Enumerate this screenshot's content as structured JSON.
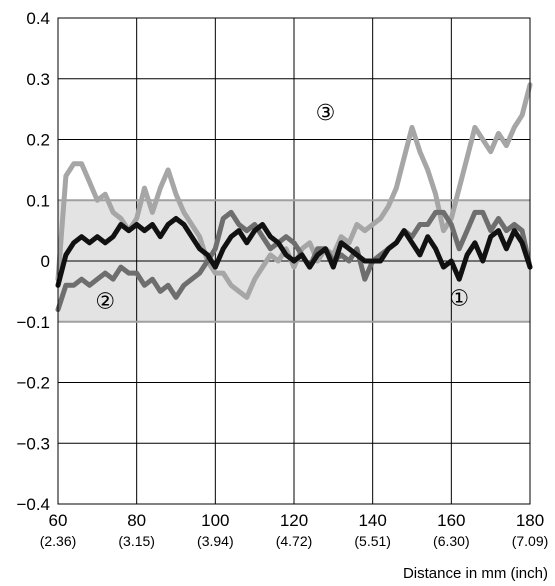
{
  "chart_data": {
    "type": "line",
    "xlabel": "Distance in mm (inch)",
    "ylabel": "",
    "xlim": [
      60,
      180
    ],
    "ylim": [
      -0.4,
      0.4
    ],
    "grid": true,
    "x_ticks": [
      {
        "mm": "60",
        "inch": "(2.36)"
      },
      {
        "mm": "80",
        "inch": "(3.15)"
      },
      {
        "mm": "100",
        "inch": "(3.94)"
      },
      {
        "mm": "120",
        "inch": "(4.72)"
      },
      {
        "mm": "140",
        "inch": "(5.51)"
      },
      {
        "mm": "160",
        "inch": "(6.30)"
      },
      {
        "mm": "180",
        "inch": "(7.09)"
      }
    ],
    "y_ticks": [
      "0.4",
      "0.3",
      "0.2",
      "0.1",
      "0",
      "−0.1",
      "−0.2",
      "−0.3",
      "−0.4"
    ],
    "tolerance_band": [
      -0.1,
      0.1
    ],
    "series": [
      {
        "marker": "①",
        "color": "#111111",
        "x": [
          60,
          62,
          64,
          66,
          68,
          70,
          72,
          74,
          76,
          78,
          80,
          82,
          84,
          86,
          88,
          90,
          92,
          94,
          96,
          98,
          100,
          102,
          104,
          106,
          108,
          110,
          112,
          114,
          116,
          118,
          120,
          122,
          124,
          126,
          128,
          130,
          132,
          134,
          136,
          138,
          140,
          142,
          144,
          146,
          148,
          150,
          152,
          154,
          156,
          158,
          160,
          162,
          164,
          166,
          168,
          170,
          172,
          174,
          176,
          178,
          180
        ],
        "y": [
          -0.04,
          0.01,
          0.03,
          0.04,
          0.03,
          0.04,
          0.03,
          0.04,
          0.06,
          0.05,
          0.06,
          0.05,
          0.06,
          0.04,
          0.06,
          0.07,
          0.06,
          0.04,
          0.02,
          0.01,
          -0.01,
          0.02,
          0.04,
          0.05,
          0.03,
          0.05,
          0.06,
          0.04,
          0.03,
          0.01,
          0.0,
          0.01,
          -0.01,
          0.01,
          0.02,
          -0.01,
          0.03,
          0.02,
          0.01,
          0.0,
          0.0,
          0.0,
          0.02,
          0.03,
          0.05,
          0.03,
          0.01,
          0.04,
          0.02,
          -0.01,
          0.0,
          -0.03,
          0.01,
          0.03,
          0.0,
          0.04,
          0.05,
          0.02,
          0.05,
          0.03,
          -0.01
        ]
      },
      {
        "marker": "②",
        "color": "#6e6e6e",
        "x": [
          60,
          62,
          64,
          66,
          68,
          70,
          72,
          74,
          76,
          78,
          80,
          82,
          84,
          86,
          88,
          90,
          92,
          94,
          96,
          98,
          100,
          102,
          104,
          106,
          108,
          110,
          112,
          114,
          116,
          118,
          120,
          122,
          124,
          126,
          128,
          130,
          132,
          134,
          136,
          138,
          140,
          142,
          144,
          146,
          148,
          150,
          152,
          154,
          156,
          158,
          160,
          162,
          164,
          166,
          168,
          170,
          172,
          174,
          176,
          178,
          180
        ],
        "y": [
          -0.08,
          -0.04,
          -0.04,
          -0.03,
          -0.04,
          -0.03,
          -0.02,
          -0.03,
          -0.01,
          -0.02,
          -0.02,
          -0.04,
          -0.03,
          -0.05,
          -0.04,
          -0.06,
          -0.04,
          -0.03,
          -0.02,
          0.0,
          0.02,
          0.07,
          0.08,
          0.06,
          0.05,
          0.06,
          0.04,
          0.02,
          0.03,
          0.04,
          0.03,
          0.01,
          -0.01,
          0.02,
          0.02,
          0.0,
          0.01,
          0.0,
          0.02,
          -0.03,
          0.0,
          0.01,
          0.02,
          0.03,
          0.05,
          0.04,
          0.06,
          0.06,
          0.08,
          0.08,
          0.06,
          0.02,
          0.05,
          0.08,
          0.08,
          0.05,
          0.07,
          0.05,
          0.06,
          0.05,
          -0.01
        ]
      },
      {
        "marker": "③",
        "color": "#a6a6a6",
        "x": [
          60,
          62,
          64,
          66,
          68,
          70,
          72,
          74,
          76,
          78,
          80,
          82,
          84,
          86,
          88,
          90,
          92,
          94,
          96,
          98,
          100,
          102,
          104,
          106,
          108,
          110,
          112,
          114,
          116,
          118,
          120,
          122,
          124,
          126,
          128,
          130,
          132,
          134,
          136,
          138,
          140,
          142,
          144,
          146,
          148,
          150,
          152,
          154,
          156,
          158,
          160,
          162,
          164,
          166,
          168,
          170,
          172,
          174,
          176,
          178,
          180
        ],
        "y": [
          -0.03,
          0.14,
          0.16,
          0.16,
          0.13,
          0.1,
          0.11,
          0.08,
          0.07,
          0.05,
          0.07,
          0.12,
          0.08,
          0.12,
          0.15,
          0.11,
          0.08,
          0.06,
          0.04,
          0.0,
          -0.02,
          -0.02,
          -0.04,
          -0.05,
          -0.06,
          -0.03,
          -0.01,
          0.01,
          0.0,
          0.02,
          -0.01,
          0.02,
          0.03,
          0.0,
          0.02,
          0.01,
          0.04,
          0.03,
          0.06,
          0.05,
          0.06,
          0.07,
          0.09,
          0.12,
          0.17,
          0.22,
          0.18,
          0.15,
          0.11,
          0.05,
          0.07,
          0.12,
          0.17,
          0.22,
          0.2,
          0.18,
          0.21,
          0.19,
          0.22,
          0.24,
          0.29
        ]
      }
    ]
  }
}
